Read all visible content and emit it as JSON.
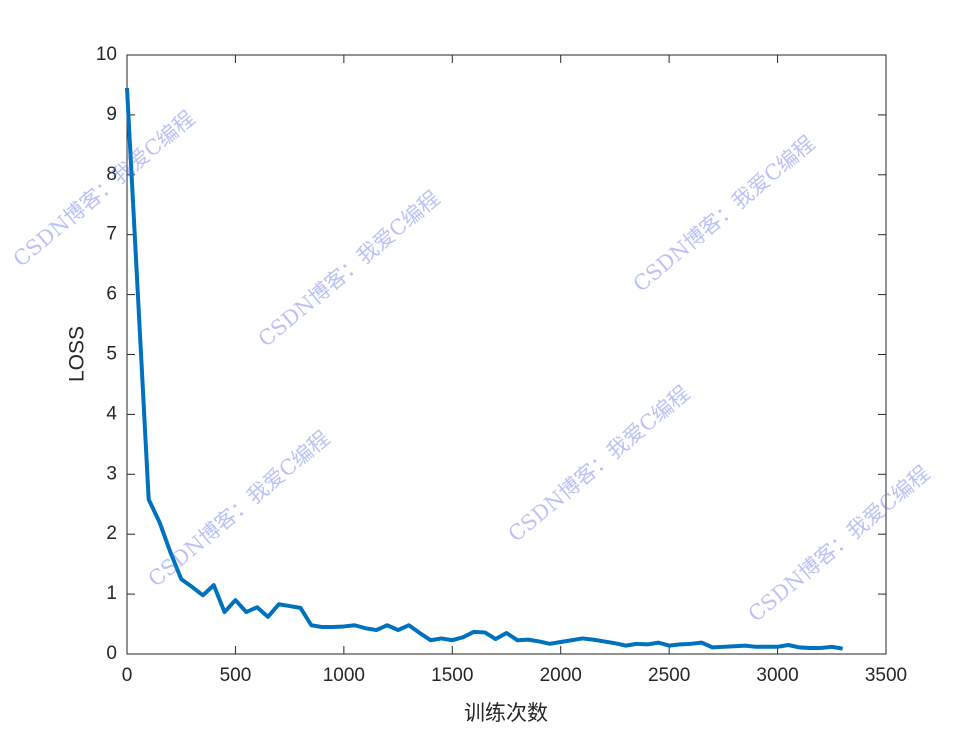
{
  "chart_data": {
    "type": "line",
    "xlabel": "训练次数",
    "ylabel": "LOSS",
    "xlim": [
      0,
      3500
    ],
    "ylim": [
      0,
      10
    ],
    "xticks": [
      0,
      500,
      1000,
      1500,
      2000,
      2500,
      3000,
      3500
    ],
    "yticks": [
      0,
      1,
      2,
      3,
      4,
      5,
      6,
      7,
      8,
      9,
      10
    ],
    "grid": false,
    "annotations": [
      "CSDN博客：我爱C编程",
      "CSDN博客：我爱C编程",
      "CSDN博客：我爱C编程",
      "CSDN博客：我爱C编程",
      "CSDN博客：我爱C编程",
      "CSDN博客：我爱C编程"
    ],
    "series": [
      {
        "name": "LOSS",
        "color": "#0072bd",
        "x": [
          0,
          100,
          150,
          200,
          250,
          300,
          350,
          400,
          450,
          500,
          550,
          600,
          650,
          700,
          750,
          800,
          850,
          900,
          950,
          1000,
          1050,
          1100,
          1150,
          1200,
          1250,
          1300,
          1350,
          1400,
          1450,
          1500,
          1550,
          1600,
          1650,
          1700,
          1750,
          1800,
          1850,
          1900,
          1950,
          2000,
          2050,
          2100,
          2150,
          2200,
          2250,
          2300,
          2350,
          2400,
          2450,
          2500,
          2550,
          2600,
          2650,
          2700,
          2750,
          2800,
          2850,
          2900,
          2950,
          3000,
          3050,
          3100,
          3150,
          3200,
          3250,
          3300
        ],
        "values": [
          9.45,
          2.58,
          2.2,
          1.7,
          1.25,
          1.12,
          0.98,
          1.15,
          0.7,
          0.9,
          0.7,
          0.78,
          0.62,
          0.83,
          0.8,
          0.77,
          0.48,
          0.45,
          0.45,
          0.46,
          0.48,
          0.43,
          0.4,
          0.48,
          0.4,
          0.48,
          0.35,
          0.23,
          0.26,
          0.23,
          0.28,
          0.37,
          0.36,
          0.25,
          0.35,
          0.23,
          0.24,
          0.21,
          0.17,
          0.2,
          0.23,
          0.26,
          0.24,
          0.21,
          0.18,
          0.14,
          0.17,
          0.16,
          0.19,
          0.14,
          0.16,
          0.17,
          0.19,
          0.11,
          0.12,
          0.13,
          0.14,
          0.12,
          0.12,
          0.12,
          0.15,
          0.11,
          0.1,
          0.1,
          0.12,
          0.09
        ]
      }
    ]
  }
}
